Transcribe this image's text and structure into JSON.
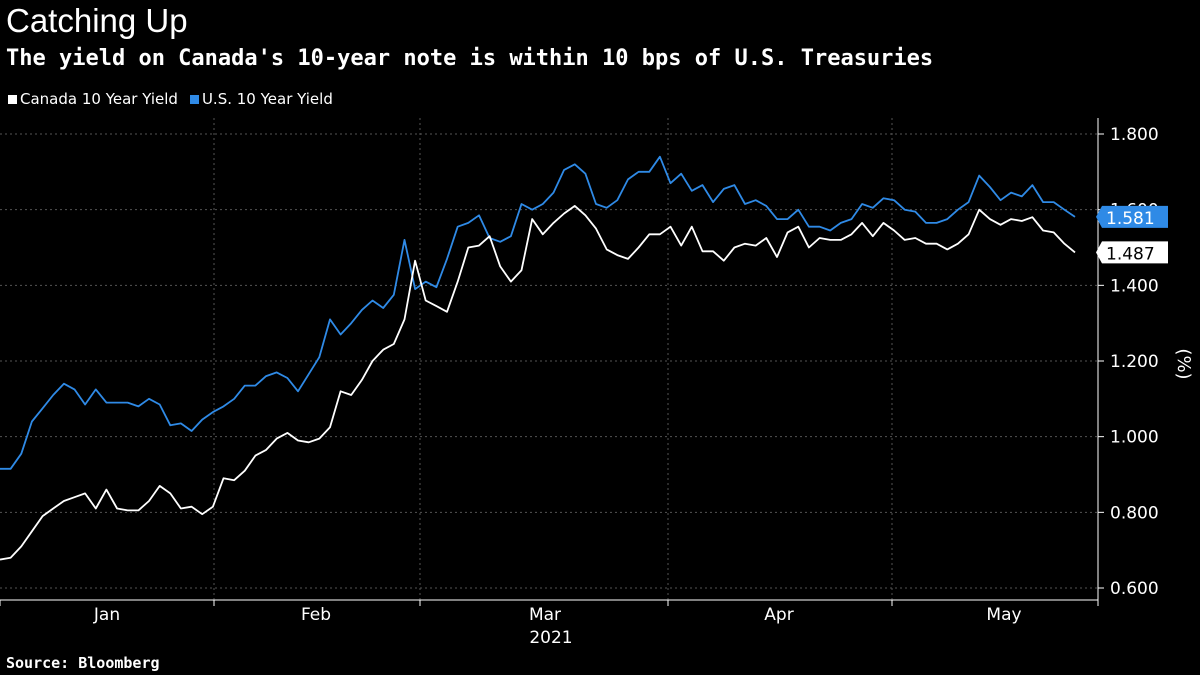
{
  "header": {
    "title": "Catching Up",
    "subtitle": "The yield on Canada's 10-year note is within 10 bps of U.S. Treasuries"
  },
  "footer": {
    "source": "Source: Bloomberg"
  },
  "colors": {
    "canada": "#ffffff",
    "us": "#2f8ae6",
    "grid": "#555555",
    "background": "#000000"
  },
  "chart_data": {
    "type": "line",
    "title": "Catching Up",
    "subtitle": "The yield on Canada's 10-year note is within 10 bps of U.S. Treasuries",
    "ylabel": "(%)",
    "year_label": "2021",
    "ylim": [
      0.6,
      1.8
    ],
    "yticks": [
      1.8,
      1.6,
      1.4,
      1.2,
      1.0,
      0.8,
      0.6
    ],
    "ytick_labels": [
      "1.800",
      "1.600",
      "1.400",
      "1.200",
      "1.000",
      "0.800",
      "0.600"
    ],
    "month_labels": [
      "Jan",
      "Feb",
      "Mar",
      "Apr",
      "May"
    ],
    "grid": true,
    "legend_position": "top-left",
    "series": [
      {
        "name": "Canada 10 Year Yield",
        "last_label": "1.487",
        "values": [
          0.675,
          0.68,
          0.71,
          0.75,
          0.79,
          0.81,
          0.83,
          0.84,
          0.85,
          0.81,
          0.86,
          0.81,
          0.805,
          0.805,
          0.83,
          0.87,
          0.85,
          0.81,
          0.815,
          0.795,
          0.815,
          0.89,
          0.885,
          0.91,
          0.95,
          0.965,
          0.995,
          1.01,
          0.99,
          0.985,
          0.995,
          1.025,
          1.12,
          1.11,
          1.15,
          1.2,
          1.23,
          1.245,
          1.31,
          1.465,
          1.36,
          1.345,
          1.33,
          1.41,
          1.5,
          1.505,
          1.53,
          1.45,
          1.41,
          1.44,
          1.575,
          1.535,
          1.565,
          1.59,
          1.61,
          1.585,
          1.55,
          1.495,
          1.48,
          1.47,
          1.5,
          1.535,
          1.535,
          1.555,
          1.505,
          1.555,
          1.49,
          1.49,
          1.465,
          1.5,
          1.51,
          1.505,
          1.525,
          1.475,
          1.54,
          1.555,
          1.5,
          1.525,
          1.52,
          1.52,
          1.535,
          1.565,
          1.53,
          1.565,
          1.545,
          1.52,
          1.525,
          1.51,
          1.51,
          1.495,
          1.51,
          1.535,
          1.6,
          1.575,
          1.56,
          1.575,
          1.57,
          1.58,
          1.545,
          1.54,
          1.51,
          1.487
        ]
      },
      {
        "name": "U.S. 10 Year Yield",
        "last_label": "1.581",
        "values": [
          0.915,
          0.915,
          0.955,
          1.04,
          1.075,
          1.11,
          1.14,
          1.125,
          1.085,
          1.125,
          1.09,
          1.09,
          1.09,
          1.08,
          1.1,
          1.085,
          1.03,
          1.035,
          1.015,
          1.045,
          1.065,
          1.08,
          1.1,
          1.135,
          1.135,
          1.16,
          1.17,
          1.155,
          1.12,
          1.165,
          1.21,
          1.31,
          1.27,
          1.3,
          1.335,
          1.36,
          1.34,
          1.375,
          1.52,
          1.39,
          1.41,
          1.395,
          1.47,
          1.555,
          1.565,
          1.585,
          1.525,
          1.515,
          1.53,
          1.615,
          1.6,
          1.615,
          1.645,
          1.705,
          1.72,
          1.695,
          1.615,
          1.605,
          1.625,
          1.68,
          1.7,
          1.7,
          1.74,
          1.67,
          1.695,
          1.65,
          1.665,
          1.62,
          1.655,
          1.665,
          1.615,
          1.625,
          1.61,
          1.575,
          1.575,
          1.6,
          1.555,
          1.555,
          1.545,
          1.565,
          1.575,
          1.615,
          1.605,
          1.63,
          1.625,
          1.6,
          1.595,
          1.565,
          1.565,
          1.575,
          1.6,
          1.62,
          1.69,
          1.66,
          1.625,
          1.645,
          1.635,
          1.665,
          1.62,
          1.62,
          1.6,
          1.581
        ]
      }
    ]
  }
}
